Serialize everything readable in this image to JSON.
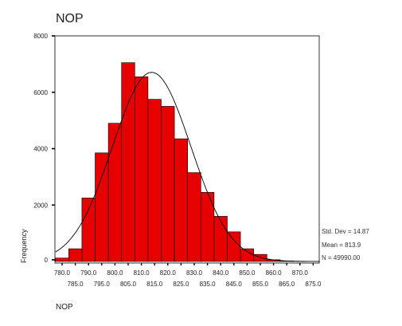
{
  "chart_data": {
    "type": "bar",
    "title": "NOP",
    "xlabel": "NOP",
    "ylabel": "Frequency",
    "bin_width": 5,
    "x_first_bin_center": 780.0,
    "bin_centers": [
      780.0,
      785.0,
      790.0,
      795.0,
      800.0,
      805.0,
      810.0,
      815.0,
      820.0,
      825.0,
      830.0,
      835.0,
      840.0,
      845.0,
      850.0,
      855.0,
      860.0,
      865.0,
      870.0,
      875.0
    ],
    "values": [
      120,
      450,
      2250,
      3850,
      4900,
      7050,
      6550,
      5750,
      5500,
      4350,
      3150,
      2450,
      1600,
      1050,
      450,
      250,
      60,
      20,
      5,
      0
    ],
    "x_tick_labels_upper": [
      "780.0",
      "790.0",
      "800.0",
      "810.0",
      "820.0",
      "830.0",
      "840.0",
      "850.0",
      "860.0",
      "870.0"
    ],
    "x_tick_labels_lower": [
      "785.0",
      "795.0",
      "805.0",
      "815.0",
      "825.0",
      "835.0",
      "845.0",
      "855.0",
      "865.0",
      "875.0"
    ],
    "y_ticks": [
      0,
      2000,
      4000,
      6000,
      8000
    ],
    "ylim": [
      0,
      8000
    ],
    "grid": false,
    "bar_color": "#e60000",
    "normal_curve": true,
    "stats": {
      "std_dev": "Std. Dev = 14.87",
      "mean": "Mean = 813.9",
      "n": "N = 49990.00"
    }
  }
}
